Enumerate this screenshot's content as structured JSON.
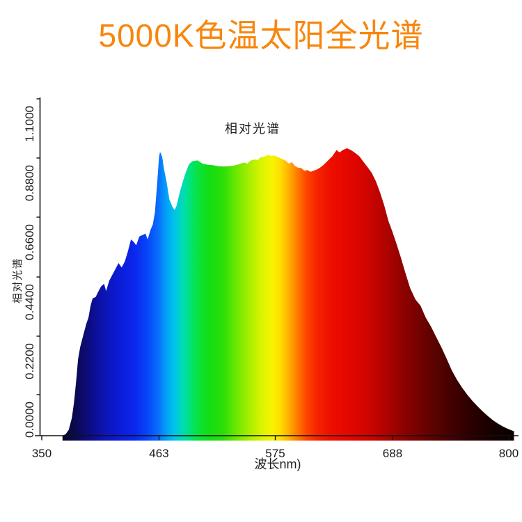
{
  "title": {
    "text": "5000K色温太阳全光谱",
    "color": "#f8860d"
  },
  "chart": {
    "title": "相对光谱",
    "x_axis_label": "波长nm)",
    "y_axis_label": "相对光谱",
    "x_tick_labels": [
      "350",
      "463",
      "575",
      "688",
      "800"
    ],
    "y_tick_labels": [
      "0.0000",
      "0.2200",
      "0.4400",
      "0.6600",
      "0.8800",
      "1.1000"
    ],
    "axis_color": "#111111",
    "text_color": "#1b1b1b",
    "background_color": "#ffffff"
  },
  "chart_data": {
    "type": "area",
    "title": "相对光谱",
    "xlabel": "波长nm)",
    "ylabel": "相对光谱",
    "series_name": "5000K色温太阳全光谱 相对光谱",
    "xlim": [
      350,
      800
    ],
    "ylim": [
      0,
      1.1
    ],
    "grid": false,
    "legend": "none",
    "x_ticks": [
      350,
      463,
      575,
      688,
      800
    ],
    "y_ticks": [
      0.0,
      0.22,
      0.44,
      0.66,
      0.88,
      1.1
    ],
    "x": [
      370,
      373,
      376,
      379,
      381,
      383,
      385,
      387,
      390,
      393,
      395,
      397,
      399,
      402,
      404,
      407,
      410,
      412,
      415,
      418,
      421,
      424,
      427,
      430,
      433,
      436,
      439,
      441,
      444,
      447,
      450,
      452,
      455,
      457,
      459,
      461,
      463,
      464,
      466,
      468,
      470,
      473,
      476,
      478,
      480,
      483,
      486,
      489,
      492,
      495,
      500,
      505,
      510,
      515,
      520,
      525,
      530,
      535,
      540,
      545,
      548,
      551,
      555,
      558,
      561,
      565,
      568,
      571,
      574,
      577,
      580,
      585,
      588,
      591,
      594,
      597,
      600,
      603,
      606,
      609,
      612,
      615,
      618,
      621,
      625,
      630,
      634,
      637,
      640,
      644,
      648,
      652,
      656,
      660,
      664,
      668,
      672,
      676,
      680,
      684,
      688,
      692,
      696,
      700,
      705,
      710,
      715,
      720,
      725,
      730,
      735,
      740,
      745,
      750,
      755,
      760,
      765,
      770,
      775,
      780,
      785,
      790,
      795,
      800,
      805
    ],
    "values": [
      0,
      0.005,
      0.02,
      0.06,
      0.11,
      0.18,
      0.26,
      0.3,
      0.34,
      0.38,
      0.4,
      0.44,
      0.465,
      0.47,
      0.485,
      0.505,
      0.515,
      0.49,
      0.525,
      0.545,
      0.565,
      0.585,
      0.57,
      0.59,
      0.625,
      0.665,
      0.655,
      0.645,
      0.675,
      0.68,
      0.685,
      0.665,
      0.7,
      0.715,
      0.755,
      0.845,
      0.945,
      0.962,
      0.945,
      0.9,
      0.867,
      0.8,
      0.775,
      0.765,
      0.78,
      0.825,
      0.862,
      0.895,
      0.92,
      0.93,
      0.933,
      0.922,
      0.918,
      0.917,
      0.913,
      0.912,
      0.913,
      0.915,
      0.92,
      0.926,
      0.922,
      0.932,
      0.936,
      0.934,
      0.944,
      0.946,
      0.952,
      0.948,
      0.95,
      0.945,
      0.94,
      0.932,
      0.922,
      0.927,
      0.914,
      0.908,
      0.907,
      0.898,
      0.9,
      0.894,
      0.898,
      0.902,
      0.908,
      0.916,
      0.93,
      0.947,
      0.968,
      0.96,
      0.968,
      0.974,
      0.968,
      0.958,
      0.947,
      0.928,
      0.91,
      0.89,
      0.862,
      0.824,
      0.78,
      0.728,
      0.69,
      0.648,
      0.604,
      0.556,
      0.5,
      0.462,
      0.44,
      0.4,
      0.37,
      0.335,
      0.3,
      0.262,
      0.222,
      0.19,
      0.163,
      0.139,
      0.118,
      0.099,
      0.082,
      0.066,
      0.052,
      0.04,
      0.03,
      0.022,
      0.015
    ],
    "gradient_stops": [
      {
        "nm": 370,
        "color": "#06062a"
      },
      {
        "nm": 383,
        "color": "#0a0a52"
      },
      {
        "nm": 395,
        "color": "#0c0c7e"
      },
      {
        "nm": 410,
        "color": "#0d14b4"
      },
      {
        "nm": 425,
        "color": "#0c1cd8"
      },
      {
        "nm": 440,
        "color": "#0a28ee"
      },
      {
        "nm": 452,
        "color": "#0846f8"
      },
      {
        "nm": 462,
        "color": "#0a6cfc"
      },
      {
        "nm": 470,
        "color": "#00a0f8"
      },
      {
        "nm": 478,
        "color": "#00c4e8"
      },
      {
        "nm": 486,
        "color": "#00dcb4"
      },
      {
        "nm": 494,
        "color": "#00e470"
      },
      {
        "nm": 502,
        "color": "#0ce238"
      },
      {
        "nm": 512,
        "color": "#12de12"
      },
      {
        "nm": 525,
        "color": "#2ede08"
      },
      {
        "nm": 538,
        "color": "#6ee800"
      },
      {
        "nm": 550,
        "color": "#a8ee00"
      },
      {
        "nm": 562,
        "color": "#dcf400"
      },
      {
        "nm": 572,
        "color": "#f8f400"
      },
      {
        "nm": 580,
        "color": "#ffdc00"
      },
      {
        "nm": 588,
        "color": "#ffb000"
      },
      {
        "nm": 596,
        "color": "#ff7c00"
      },
      {
        "nm": 605,
        "color": "#fc4800"
      },
      {
        "nm": 615,
        "color": "#f62400"
      },
      {
        "nm": 628,
        "color": "#ee0e00"
      },
      {
        "nm": 645,
        "color": "#e40600"
      },
      {
        "nm": 662,
        "color": "#d20400"
      },
      {
        "nm": 680,
        "color": "#b20300"
      },
      {
        "nm": 700,
        "color": "#8a0200"
      },
      {
        "nm": 722,
        "color": "#640200"
      },
      {
        "nm": 745,
        "color": "#420100"
      },
      {
        "nm": 768,
        "color": "#260000"
      },
      {
        "nm": 788,
        "color": "#140000"
      },
      {
        "nm": 805,
        "color": "#0a0000"
      }
    ]
  }
}
